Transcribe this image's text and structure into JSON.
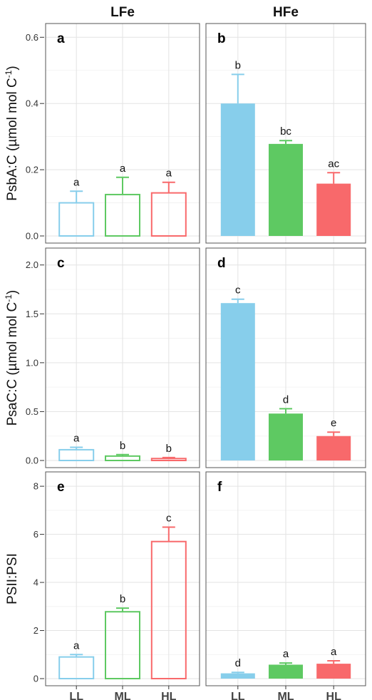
{
  "chart_data": {
    "type": "bar",
    "columns": [
      "LFe",
      "HFe"
    ],
    "categories": [
      "LL",
      "ML",
      "HL"
    ],
    "colors": {
      "LL": "#87ceeb",
      "ML": "#5ec962",
      "HL": "#f8696b"
    },
    "rows": [
      {
        "ylabel": "PsbA:C (µmol  mol C",
        "ylabel_sup": "-1",
        "ylabel_close": ")",
        "ylim": [
          0,
          0.62
        ],
        "yticks": [
          0.0,
          0.2,
          0.4,
          0.6
        ],
        "ytick_labels": [
          "0.0",
          "0.2",
          "0.4",
          "0.6"
        ],
        "panels": [
          {
            "label": "a",
            "column": "LFe",
            "fill": "none",
            "values": [
              0.1,
              0.125,
              0.13
            ],
            "errors": [
              0.035,
              0.052,
              0.032
            ],
            "sig": [
              "a",
              "a",
              "a"
            ]
          },
          {
            "label": "b",
            "column": "HFe",
            "fill": "solid",
            "values": [
              0.4,
              0.278,
              0.158
            ],
            "errors": [
              0.088,
              0.01,
              0.033
            ],
            "sig": [
              "b",
              "bc",
              "ac"
            ]
          }
        ]
      },
      {
        "ylabel": "PsaC:C (µmol  mol C",
        "ylabel_sup": "-1",
        "ylabel_close": ")",
        "ylim": [
          0,
          2.1
        ],
        "yticks": [
          0.0,
          0.5,
          1.0,
          1.5,
          2.0
        ],
        "ytick_labels": [
          "0.0",
          "0.5",
          "1.0",
          "1.5",
          "2.0"
        ],
        "panels": [
          {
            "label": "c",
            "column": "LFe",
            "fill": "none",
            "values": [
              0.11,
              0.045,
              0.02
            ],
            "errors": [
              0.025,
              0.015,
              0.01
            ],
            "sig": [
              "a",
              "b",
              "b"
            ]
          },
          {
            "label": "d",
            "column": "HFe",
            "fill": "solid",
            "values": [
              1.61,
              0.48,
              0.25
            ],
            "errors": [
              0.04,
              0.05,
              0.04
            ],
            "sig": [
              "c",
              "d",
              "e"
            ]
          }
        ]
      },
      {
        "ylabel": "PSII:PSI",
        "ylabel_sup": "",
        "ylabel_close": "",
        "ylim": [
          0,
          8.3
        ],
        "yticks": [
          0,
          2,
          4,
          6,
          8
        ],
        "ytick_labels": [
          "0",
          "2",
          "4",
          "6",
          "8"
        ],
        "panels": [
          {
            "label": "e",
            "column": "LFe",
            "fill": "none",
            "values": [
              0.9,
              2.78,
              5.7
            ],
            "errors": [
              0.1,
              0.15,
              0.6
            ],
            "sig": [
              "a",
              "b",
              "c"
            ]
          },
          {
            "label": "f",
            "column": "HFe",
            "fill": "solid",
            "values": [
              0.22,
              0.58,
              0.62
            ],
            "errors": [
              0.04,
              0.07,
              0.12
            ],
            "sig": [
              "d",
              "a",
              "a"
            ]
          }
        ]
      }
    ],
    "grid": true
  }
}
